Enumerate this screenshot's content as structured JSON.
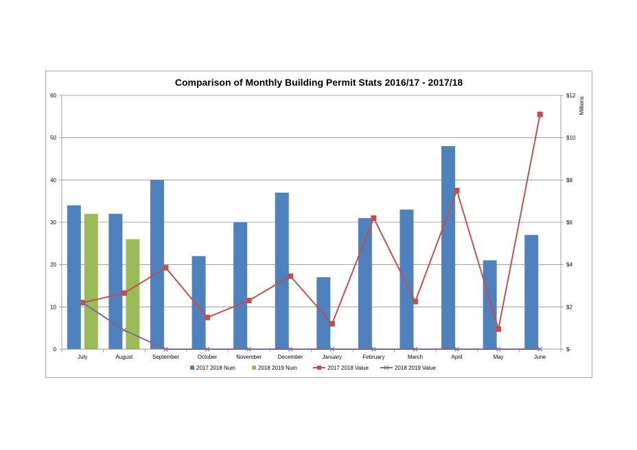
{
  "chart_data": {
    "type": "bar",
    "title": "Comparison of Monthly Building Permit Stats 2016/17 - 2017/18",
    "categories": [
      "July",
      "August",
      "September",
      "October",
      "November",
      "December",
      "January",
      "February",
      "March",
      "April",
      "May",
      "June"
    ],
    "y_left": {
      "min": 0,
      "max": 60,
      "step": 10,
      "ticks": [
        "0",
        "10",
        "20",
        "30",
        "40",
        "50",
        "60"
      ]
    },
    "y_right": {
      "min": 0,
      "max": 12,
      "step": 2,
      "ticks": [
        "$-",
        "$2",
        "$4",
        "$6",
        "$8",
        "$10",
        "$12"
      ],
      "label": "Millions"
    },
    "grid": true,
    "legend_position": "bottom",
    "series": [
      {
        "name": "2017 2018 Num",
        "kind": "bar",
        "axis": "left",
        "color": "#4f81bd",
        "values": [
          34,
          32,
          40,
          22,
          30,
          37,
          17,
          31,
          33,
          48,
          21,
          27
        ]
      },
      {
        "name": "2018 2019 Num",
        "kind": "bar",
        "axis": "left",
        "color": "#9bbb59",
        "values": [
          32,
          26,
          null,
          null,
          null,
          null,
          null,
          null,
          null,
          null,
          null,
          null
        ]
      },
      {
        "name": "2017 2018 Value",
        "kind": "line",
        "axis": "right",
        "color": "#c0504d",
        "marker": "square",
        "values": [
          2.2,
          2.65,
          3.85,
          1.5,
          2.3,
          3.45,
          1.2,
          6.2,
          2.25,
          7.5,
          0.95,
          11.1
        ]
      },
      {
        "name": "2018 2019 Value",
        "kind": "line",
        "axis": "right",
        "color": "#8064a2",
        "marker": "x",
        "values": [
          2.2,
          0.9,
          0,
          0,
          0,
          0,
          0,
          0,
          0,
          0,
          0,
          0
        ]
      }
    ]
  }
}
